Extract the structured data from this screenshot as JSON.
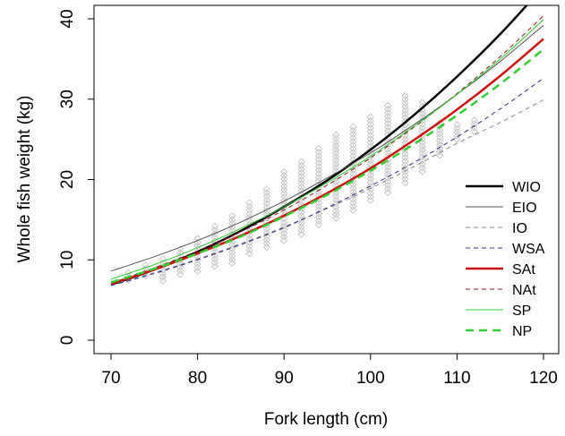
{
  "chart_data": {
    "type": "line",
    "xlabel": "Fork length (cm)",
    "ylabel": "Whole fish weight (kg)",
    "xlim": [
      70,
      120
    ],
    "ylim": [
      0,
      42
    ],
    "x_ticks": [
      70,
      80,
      90,
      100,
      110,
      120
    ],
    "y_ticks": [
      0,
      10,
      20,
      30,
      40
    ],
    "grid": false,
    "legend_position": "bottom-right",
    "x": [
      70,
      75,
      80,
      85,
      90,
      95,
      100,
      105,
      110,
      115,
      120
    ],
    "series": [
      {
        "name": "WIO",
        "color": "#000000",
        "dash": "solid",
        "width": 2.5,
        "values": [
          6.9,
          8.8,
          11.0,
          13.6,
          16.6,
          19.9,
          23.7,
          28.0,
          32.8,
          38.1,
          44.0
        ]
      },
      {
        "name": "EIO",
        "color": "#555555",
        "dash": "solid",
        "width": 1,
        "values": [
          8.6,
          10.4,
          12.4,
          14.7,
          17.3,
          20.2,
          23.3,
          26.8,
          30.6,
          34.7,
          39.2
        ]
      },
      {
        "name": "IO",
        "color": "#888888",
        "dash": "dashed",
        "width": 1,
        "values": [
          6.9,
          8.4,
          10.1,
          12.0,
          14.1,
          16.4,
          18.9,
          21.6,
          24.5,
          27.1,
          29.9
        ]
      },
      {
        "name": "WSA",
        "color": "#2e2e8c",
        "dash": "dashed",
        "width": 1,
        "values": [
          6.8,
          8.3,
          10.0,
          11.9,
          14.0,
          16.5,
          19.2,
          22.1,
          25.3,
          28.8,
          32.6
        ]
      },
      {
        "name": "SAt",
        "color": "#cc1111",
        "dash": "solid",
        "width": 2.5,
        "values": [
          7.0,
          8.8,
          10.8,
          13.0,
          15.5,
          18.3,
          21.4,
          24.9,
          28.7,
          32.9,
          37.5
        ]
      },
      {
        "name": "NAt",
        "color": "#8b1a1a",
        "dash": "dashed",
        "width": 1,
        "values": [
          7.1,
          9.0,
          11.1,
          13.5,
          16.2,
          19.3,
          22.7,
          26.5,
          30.7,
          35.3,
          40.4
        ]
      },
      {
        "name": "SP",
        "color": "#33cc33",
        "dash": "solid",
        "width": 1,
        "values": [
          7.6,
          9.4,
          11.5,
          13.9,
          16.6,
          19.6,
          22.9,
          26.6,
          30.6,
          35.0,
          39.9
        ]
      },
      {
        "name": "NP",
        "color": "#33cc33",
        "dash": "dashed",
        "width": 2.5,
        "values": [
          7.2,
          8.9,
          10.8,
          12.9,
          15.4,
          18.1,
          21.1,
          24.4,
          28.0,
          31.9,
          36.2
        ]
      }
    ],
    "observations": {
      "description_color": "#bbbbbb",
      "columns": [
        {
          "x": 72,
          "ymin": 7.5,
          "ymax": 8.4
        },
        {
          "x": 74,
          "ymin": 8.0,
          "ymax": 9.4
        },
        {
          "x": 76,
          "ymin": 7.4,
          "ymax": 10.4
        },
        {
          "x": 78,
          "ymin": 8.2,
          "ymax": 11.4
        },
        {
          "x": 80,
          "ymin": 8.6,
          "ymax": 12.8
        },
        {
          "x": 82,
          "ymin": 9.2,
          "ymax": 14.2
        },
        {
          "x": 84,
          "ymin": 9.6,
          "ymax": 15.6
        },
        {
          "x": 86,
          "ymin": 10.8,
          "ymax": 17.4
        },
        {
          "x": 88,
          "ymin": 11.6,
          "ymax": 19.2
        },
        {
          "x": 90,
          "ymin": 12.4,
          "ymax": 21.0
        },
        {
          "x": 92,
          "ymin": 13.2,
          "ymax": 22.6
        },
        {
          "x": 94,
          "ymin": 14.4,
          "ymax": 24.0
        },
        {
          "x": 96,
          "ymin": 15.2,
          "ymax": 25.6
        },
        {
          "x": 98,
          "ymin": 16.2,
          "ymax": 26.8
        },
        {
          "x": 100,
          "ymin": 17.4,
          "ymax": 27.8
        },
        {
          "x": 102,
          "ymin": 18.4,
          "ymax": 29.2
        },
        {
          "x": 104,
          "ymin": 19.6,
          "ymax": 30.6
        },
        {
          "x": 106,
          "ymin": 21.0,
          "ymax": 29.6
        },
        {
          "x": 108,
          "ymin": 23.0,
          "ymax": 27.4
        },
        {
          "x": 110,
          "ymin": 25.0,
          "ymax": 27.0
        },
        {
          "x": 112,
          "ymin": 26.0,
          "ymax": 27.6
        }
      ]
    }
  }
}
